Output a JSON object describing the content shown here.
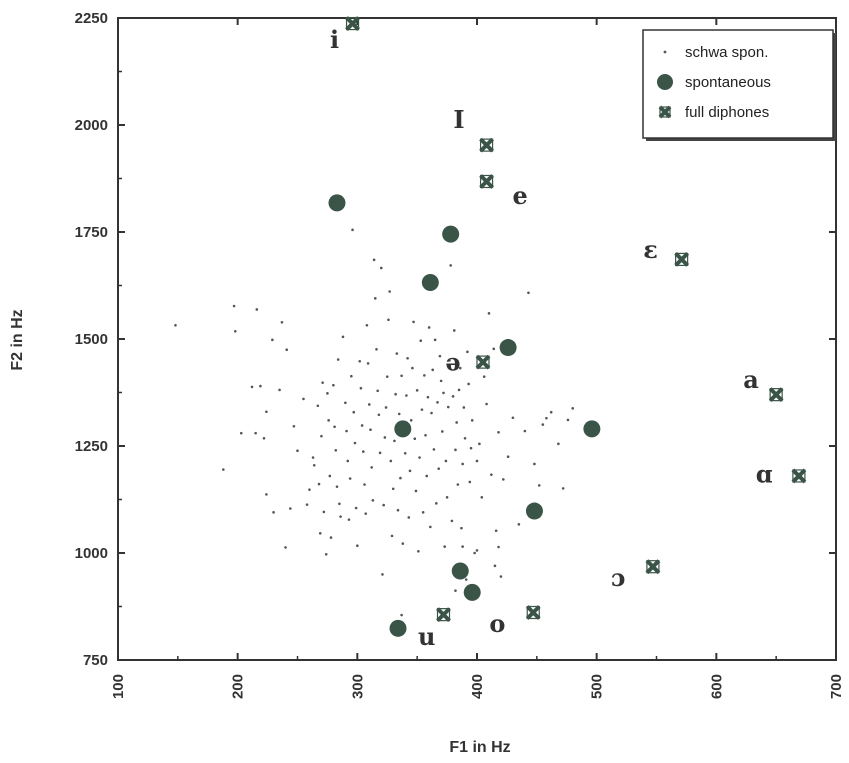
{
  "chart_data": {
    "type": "scatter",
    "xlabel": "F1 in Hz",
    "ylabel": "F2 in Hz",
    "xlim": [
      100,
      700
    ],
    "ylim": [
      750,
      2250
    ],
    "x_ticks": [
      100,
      200,
      300,
      400,
      500,
      600,
      700
    ],
    "y_ticks": [
      750,
      1000,
      1250,
      1500,
      1750,
      2000,
      2250
    ],
    "legend_position": "top-right",
    "series": [
      {
        "name": "schwa spon.",
        "marker": "dot",
        "color": "#555555",
        "points": [
          [
            148,
            1532
          ],
          [
            188,
            1195
          ],
          [
            197,
            1577
          ],
          [
            198,
            1518
          ],
          [
            203,
            1280
          ],
          [
            212,
            1388
          ],
          [
            215,
            1280
          ],
          [
            216,
            1569
          ],
          [
            219,
            1390
          ],
          [
            222,
            1268
          ],
          [
            224,
            1330
          ],
          [
            224,
            1137
          ],
          [
            229,
            1498
          ],
          [
            230,
            1095
          ],
          [
            235,
            1381
          ],
          [
            237,
            1539
          ],
          [
            240,
            1013
          ],
          [
            241,
            1475
          ],
          [
            244,
            1104
          ],
          [
            247,
            1296
          ],
          [
            250,
            1239
          ],
          [
            255,
            1360
          ],
          [
            258,
            1113
          ],
          [
            260,
            1148
          ],
          [
            263,
            1223
          ],
          [
            264,
            1205
          ],
          [
            267,
            1344
          ],
          [
            268,
            1161
          ],
          [
            269,
            1046
          ],
          [
            270,
            1273
          ],
          [
            271,
            1398
          ],
          [
            272,
            1096
          ],
          [
            274,
            997
          ],
          [
            275,
            1373
          ],
          [
            276,
            1310
          ],
          [
            277,
            1180
          ],
          [
            278,
            1036
          ],
          [
            280,
            1392
          ],
          [
            281,
            1295
          ],
          [
            282,
            1240
          ],
          [
            283,
            1155
          ],
          [
            284,
            1452
          ],
          [
            285,
            1115
          ],
          [
            286,
            1085
          ],
          [
            288,
            1505
          ],
          [
            290,
            1351
          ],
          [
            291,
            1285
          ],
          [
            292,
            1215
          ],
          [
            293,
            1078
          ],
          [
            294,
            1174
          ],
          [
            295,
            1413
          ],
          [
            296,
            1755
          ],
          [
            297,
            1329
          ],
          [
            298,
            1257
          ],
          [
            299,
            1105
          ],
          [
            300,
            1017
          ],
          [
            302,
            1448
          ],
          [
            303,
            1385
          ],
          [
            304,
            1298
          ],
          [
            305,
            1237
          ],
          [
            306,
            1160
          ],
          [
            307,
            1092
          ],
          [
            308,
            1532
          ],
          [
            309,
            1443
          ],
          [
            310,
            1347
          ],
          [
            311,
            1288
          ],
          [
            312,
            1200
          ],
          [
            313,
            1123
          ],
          [
            314,
            1685
          ],
          [
            315,
            1595
          ],
          [
            316,
            1476
          ],
          [
            317,
            1379
          ],
          [
            318,
            1323
          ],
          [
            319,
            1234
          ],
          [
            320,
            1666
          ],
          [
            321,
            950
          ],
          [
            322,
            1112
          ],
          [
            323,
            1270
          ],
          [
            324,
            1340
          ],
          [
            325,
            1412
          ],
          [
            326,
            1545
          ],
          [
            327,
            1611
          ],
          [
            328,
            1215
          ],
          [
            329,
            1040
          ],
          [
            330,
            1150
          ],
          [
            331,
            1262
          ],
          [
            332,
            1371
          ],
          [
            333,
            1466
          ],
          [
            334,
            1100
          ],
          [
            335,
            1325
          ],
          [
            336,
            1175
          ],
          [
            337,
            1414
          ],
          [
            338,
            1022
          ],
          [
            339,
            1305
          ],
          [
            340,
            1233
          ],
          [
            341,
            1368
          ],
          [
            342,
            1455
          ],
          [
            343,
            1083
          ],
          [
            344,
            1192
          ],
          [
            345,
            1310
          ],
          [
            346,
            1432
          ],
          [
            347,
            1540
          ],
          [
            348,
            1267
          ],
          [
            349,
            1145
          ],
          [
            350,
            1380
          ],
          [
            351,
            1004
          ],
          [
            352,
            1223
          ],
          [
            353,
            1496
          ],
          [
            354,
            1335
          ],
          [
            355,
            1095
          ],
          [
            356,
            1415
          ],
          [
            357,
            1275
          ],
          [
            358,
            1180
          ],
          [
            359,
            1364
          ],
          [
            360,
            1527
          ],
          [
            361,
            1061
          ],
          [
            362,
            1327
          ],
          [
            363,
            1428
          ],
          [
            364,
            1242
          ],
          [
            365,
            1498
          ],
          [
            366,
            1116
          ],
          [
            367,
            1352
          ],
          [
            368,
            1197
          ],
          [
            369,
            1460
          ],
          [
            370,
            1402
          ],
          [
            371,
            1284
          ],
          [
            372,
            1374
          ],
          [
            373,
            1015
          ],
          [
            374,
            1215
          ],
          [
            375,
            1130
          ],
          [
            376,
            1341
          ],
          [
            377,
            1450
          ],
          [
            378,
            1672
          ],
          [
            379,
            1075
          ],
          [
            380,
            1366
          ],
          [
            381,
            1520
          ],
          [
            382,
            1241
          ],
          [
            383,
            1305
          ],
          [
            384,
            1160
          ],
          [
            385,
            1381
          ],
          [
            386,
            1432
          ],
          [
            387,
            1058
          ],
          [
            388,
            1208
          ],
          [
            389,
            1340
          ],
          [
            390,
            1268
          ],
          [
            391,
            938
          ],
          [
            392,
            1470
          ],
          [
            393,
            1395
          ],
          [
            394,
            1166
          ],
          [
            395,
            1245
          ],
          [
            396,
            1310
          ],
          [
            398,
            1000
          ],
          [
            400,
            1215
          ],
          [
            402,
            1255
          ],
          [
            404,
            1130
          ],
          [
            406,
            1412
          ],
          [
            408,
            1348
          ],
          [
            410,
            1560
          ],
          [
            412,
            1183
          ],
          [
            414,
            1477
          ],
          [
            416,
            1052
          ],
          [
            418,
            1282
          ],
          [
            420,
            945
          ],
          [
            422,
            1172
          ],
          [
            426,
            1225
          ],
          [
            430,
            1316
          ],
          [
            435,
            1067
          ],
          [
            440,
            1285
          ],
          [
            443,
            1608
          ],
          [
            448,
            1208
          ],
          [
            452,
            1158
          ],
          [
            455,
            1300
          ],
          [
            458,
            1315
          ],
          [
            462,
            1329
          ],
          [
            468,
            1255
          ],
          [
            472,
            1151
          ],
          [
            476,
            1311
          ],
          [
            480,
            1338
          ],
          [
            337,
            855
          ],
          [
            370,
            860
          ],
          [
            382,
            912
          ],
          [
            384,
            970
          ],
          [
            415,
            970
          ],
          [
            418,
            1014
          ],
          [
            388,
            1015
          ],
          [
            400,
            1006
          ]
        ]
      },
      {
        "name": "spontaneous",
        "marker": "circle",
        "color": "#3b5448",
        "points": [
          [
            283,
            1818
          ],
          [
            378,
            1745
          ],
          [
            361,
            1632
          ],
          [
            426,
            1480
          ],
          [
            338,
            1290
          ],
          [
            496,
            1290
          ],
          [
            448,
            1098
          ],
          [
            386,
            958
          ],
          [
            396,
            908
          ],
          [
            334,
            824
          ]
        ]
      },
      {
        "name": "full diphones",
        "marker": "bowtie",
        "color": "#3b5448",
        "points": [
          [
            296,
            2237
          ],
          [
            408,
            1953
          ],
          [
            408,
            1868
          ],
          [
            571,
            1686
          ],
          [
            405,
            1446
          ],
          [
            650,
            1370
          ],
          [
            669,
            1180
          ],
          [
            547,
            968
          ],
          [
            372,
            856
          ],
          [
            447,
            861
          ]
        ]
      }
    ],
    "vowel_labels": [
      {
        "text": "i",
        "x": 281,
        "y": 2180
      },
      {
        "text": "I",
        "x": 385,
        "y": 1993
      },
      {
        "text": "e",
        "x": 436,
        "y": 1816
      },
      {
        "text": "ɛ",
        "x": 545,
        "y": 1689
      },
      {
        "text": "ə",
        "x": 380,
        "y": 1426
      },
      {
        "text": "a",
        "x": 629,
        "y": 1385
      },
      {
        "text": "ɑ",
        "x": 640,
        "y": 1165
      },
      {
        "text": "ɔ",
        "x": 518,
        "y": 923
      },
      {
        "text": "o",
        "x": 417,
        "y": 815
      },
      {
        "text": "u",
        "x": 358,
        "y": 785
      }
    ]
  }
}
